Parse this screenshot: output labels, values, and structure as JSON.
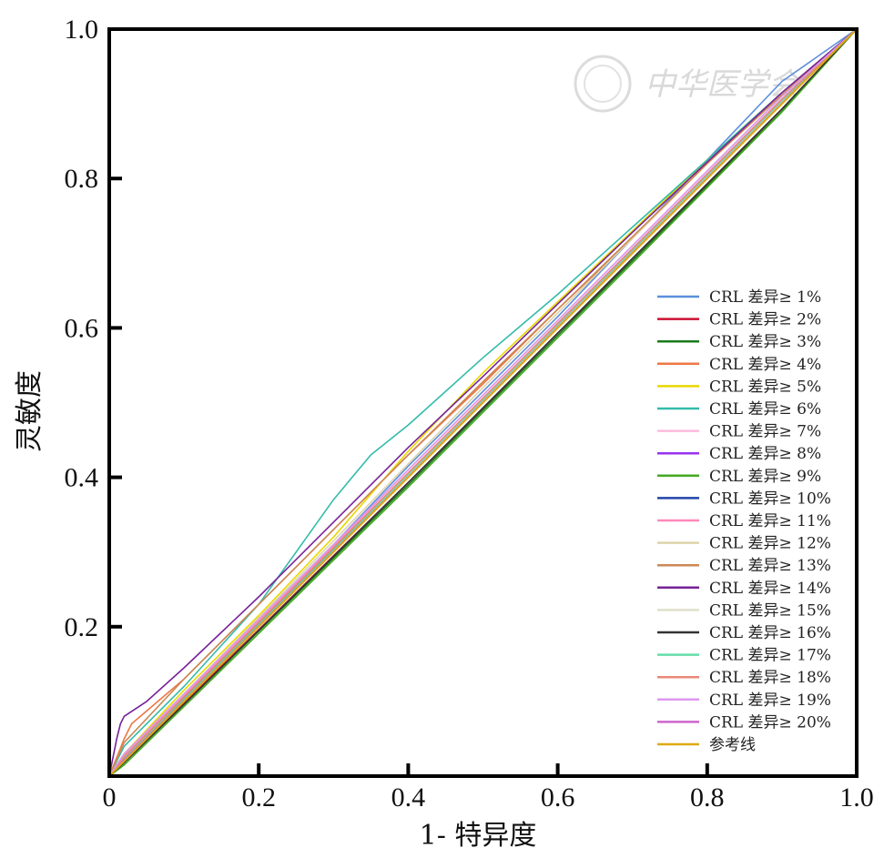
{
  "watermark": {
    "text": "中华医学会"
  },
  "chart_data": {
    "type": "line",
    "title": "",
    "xlabel": "1- 特异度",
    "ylabel": "灵敏度",
    "xlim": [
      0,
      1
    ],
    "ylim": [
      0,
      1
    ],
    "x_ticks": [
      "0",
      "0.2",
      "0.4",
      "0.6",
      "0.8",
      "1.0"
    ],
    "y_ticks": [
      "0.2",
      "0.4",
      "0.6",
      "0.8",
      "1.0"
    ],
    "grid": false,
    "legend_position": "right",
    "series": [
      {
        "name": "CRL 差异≥ 1%",
        "color": "#5b8fdc",
        "x": [
          0,
          0.02,
          0.1,
          0.2,
          0.3,
          0.4,
          0.5,
          0.6,
          0.7,
          0.8,
          0.9,
          1
        ],
        "y": [
          0,
          0.03,
          0.11,
          0.21,
          0.31,
          0.415,
          0.515,
          0.615,
          0.72,
          0.825,
          0.93,
          1
        ]
      },
      {
        "name": "CRL 差异≥ 2%",
        "color": "#cc1133",
        "x": [
          0,
          0.02,
          0.1,
          0.2,
          0.3,
          0.4,
          0.5,
          0.6,
          0.7,
          0.8,
          0.9,
          1
        ],
        "y": [
          0,
          0.02,
          0.098,
          0.196,
          0.295,
          0.393,
          0.492,
          0.593,
          0.69,
          0.792,
          0.893,
          1
        ]
      },
      {
        "name": "CRL 差异≥ 3%",
        "color": "#1a7a1a",
        "x": [
          0,
          0.02,
          0.1,
          0.2,
          0.3,
          0.4,
          0.5,
          0.6,
          0.7,
          0.8,
          0.9,
          1
        ],
        "y": [
          0,
          0.018,
          0.096,
          0.194,
          0.292,
          0.39,
          0.49,
          0.59,
          0.69,
          0.79,
          0.89,
          1
        ]
      },
      {
        "name": "CRL 差异≥ 4%",
        "color": "#ee7744",
        "x": [
          0,
          0.02,
          0.03,
          0.1,
          0.2,
          0.3,
          0.4,
          0.5,
          0.6,
          0.7,
          0.8,
          0.9,
          1
        ],
        "y": [
          0,
          0.05,
          0.07,
          0.13,
          0.23,
          0.33,
          0.43,
          0.525,
          0.625,
          0.72,
          0.82,
          0.915,
          1
        ]
      },
      {
        "name": "CRL 差异≥ 5%",
        "color": "#e8d800",
        "x": [
          0,
          0.02,
          0.1,
          0.2,
          0.3,
          0.4,
          0.5,
          0.6,
          0.7,
          0.8,
          0.9,
          1
        ],
        "y": [
          0,
          0.03,
          0.115,
          0.215,
          0.32,
          0.435,
          0.54,
          0.635,
          0.73,
          0.825,
          0.915,
          1
        ]
      },
      {
        "name": "CRL 差异≥ 6%",
        "color": "#33bbaa",
        "x": [
          0,
          0.02,
          0.1,
          0.2,
          0.25,
          0.3,
          0.35,
          0.4,
          0.5,
          0.6,
          0.7,
          0.8,
          0.9,
          1
        ],
        "y": [
          0,
          0.04,
          0.12,
          0.23,
          0.3,
          0.37,
          0.43,
          0.47,
          0.56,
          0.645,
          0.735,
          0.825,
          0.915,
          1
        ]
      },
      {
        "name": "CRL 差异≥ 7%",
        "color": "#ffbbdd",
        "x": [
          0,
          0.02,
          0.1,
          0.2,
          0.3,
          0.4,
          0.5,
          0.6,
          0.7,
          0.8,
          0.9,
          1
        ],
        "y": [
          0,
          0.025,
          0.105,
          0.205,
          0.305,
          0.405,
          0.505,
          0.605,
          0.705,
          0.805,
          0.905,
          1
        ]
      },
      {
        "name": "CRL 差异≥ 8%",
        "color": "#9933ee",
        "x": [
          0,
          0.02,
          0.1,
          0.2,
          0.3,
          0.4,
          0.5,
          0.6,
          0.7,
          0.8,
          0.9,
          1
        ],
        "y": [
          0,
          0.022,
          0.1,
          0.2,
          0.3,
          0.4,
          0.5,
          0.6,
          0.7,
          0.8,
          0.9,
          1
        ]
      },
      {
        "name": "CRL 差异≥ 9%",
        "color": "#44aa22",
        "x": [
          0,
          0.02,
          0.1,
          0.2,
          0.3,
          0.4,
          0.5,
          0.6,
          0.7,
          0.8,
          0.9,
          1
        ],
        "y": [
          0,
          0.015,
          0.093,
          0.191,
          0.289,
          0.387,
          0.487,
          0.587,
          0.687,
          0.788,
          0.889,
          1
        ]
      },
      {
        "name": "CRL 差异≥ 10%",
        "color": "#2244aa",
        "x": [
          0,
          0.02,
          0.1,
          0.2,
          0.3,
          0.4,
          0.5,
          0.6,
          0.7,
          0.8,
          0.9,
          1
        ],
        "y": [
          0,
          0.025,
          0.104,
          0.205,
          0.305,
          0.405,
          0.505,
          0.606,
          0.706,
          0.806,
          0.906,
          1
        ]
      },
      {
        "name": "CRL 差异≥ 11%",
        "color": "#ff88bb",
        "x": [
          0,
          0.02,
          0.1,
          0.2,
          0.3,
          0.4,
          0.5,
          0.6,
          0.7,
          0.8,
          0.9,
          1
        ],
        "y": [
          0,
          0.028,
          0.108,
          0.208,
          0.308,
          0.41,
          0.51,
          0.61,
          0.71,
          0.81,
          0.91,
          1
        ]
      },
      {
        "name": "CRL 差异≥ 12%",
        "color": "#ddd4aa",
        "x": [
          0,
          0.02,
          0.1,
          0.2,
          0.3,
          0.4,
          0.5,
          0.6,
          0.7,
          0.8,
          0.9,
          1
        ],
        "y": [
          0,
          0.03,
          0.11,
          0.212,
          0.315,
          0.418,
          0.52,
          0.62,
          0.72,
          0.82,
          0.915,
          1
        ]
      },
      {
        "name": "CRL 差异≥ 13%",
        "color": "#cc8855",
        "x": [
          0,
          0.02,
          0.1,
          0.2,
          0.3,
          0.4,
          0.5,
          0.6,
          0.7,
          0.8,
          0.9,
          1
        ],
        "y": [
          0,
          0.045,
          0.13,
          0.23,
          0.33,
          0.43,
          0.528,
          0.625,
          0.722,
          0.82,
          0.912,
          1
        ]
      },
      {
        "name": "CRL 差异≥ 14%",
        "color": "#772299",
        "x": [
          0,
          0.01,
          0.015,
          0.02,
          0.05,
          0.1,
          0.2,
          0.3,
          0.4,
          0.5,
          0.6,
          0.7,
          0.8,
          0.9,
          1
        ],
        "y": [
          0,
          0.05,
          0.07,
          0.08,
          0.1,
          0.145,
          0.24,
          0.34,
          0.44,
          0.535,
          0.632,
          0.728,
          0.822,
          0.915,
          1
        ]
      },
      {
        "name": "CRL 差异≥ 15%",
        "color": "#e0e0cc",
        "x": [
          0,
          0.02,
          0.1,
          0.2,
          0.3,
          0.4,
          0.5,
          0.6,
          0.7,
          0.8,
          0.9,
          1
        ],
        "y": [
          0,
          0.02,
          0.1,
          0.2,
          0.3,
          0.4,
          0.5,
          0.6,
          0.7,
          0.8,
          0.9,
          1
        ]
      },
      {
        "name": "CRL 差异≥ 16%",
        "color": "#333333",
        "x": [
          0,
          0.02,
          0.1,
          0.2,
          0.3,
          0.4,
          0.5,
          0.6,
          0.7,
          0.8,
          0.9,
          1
        ],
        "y": [
          0,
          0.018,
          0.096,
          0.195,
          0.294,
          0.393,
          0.493,
          0.593,
          0.693,
          0.793,
          0.893,
          1
        ]
      },
      {
        "name": "CRL 差异≥ 17%",
        "color": "#66ddaa",
        "x": [
          0,
          0.02,
          0.1,
          0.2,
          0.3,
          0.4,
          0.5,
          0.6,
          0.7,
          0.8,
          0.9,
          1
        ],
        "y": [
          0,
          0.024,
          0.103,
          0.203,
          0.303,
          0.404,
          0.504,
          0.604,
          0.704,
          0.804,
          0.904,
          1
        ]
      },
      {
        "name": "CRL 差异≥ 18%",
        "color": "#e88877",
        "x": [
          0,
          0.02,
          0.1,
          0.2,
          0.3,
          0.4,
          0.5,
          0.6,
          0.7,
          0.8,
          0.9,
          1
        ],
        "y": [
          0,
          0.026,
          0.106,
          0.206,
          0.306,
          0.406,
          0.506,
          0.606,
          0.706,
          0.806,
          0.906,
          1
        ]
      },
      {
        "name": "CRL 差异≥ 19%",
        "color": "#dd99ee",
        "x": [
          0,
          0.02,
          0.1,
          0.2,
          0.3,
          0.4,
          0.5,
          0.6,
          0.7,
          0.8,
          0.9,
          1
        ],
        "y": [
          0,
          0.03,
          0.11,
          0.21,
          0.31,
          0.41,
          0.51,
          0.61,
          0.71,
          0.81,
          0.91,
          1
        ]
      },
      {
        "name": "CRL 差异≥ 20%",
        "color": "#cc66cc",
        "x": [
          0,
          0.02,
          0.1,
          0.2,
          0.3,
          0.4,
          0.5,
          0.6,
          0.7,
          0.8,
          0.9,
          1
        ],
        "y": [
          0,
          0.022,
          0.101,
          0.201,
          0.301,
          0.401,
          0.501,
          0.601,
          0.701,
          0.801,
          0.901,
          1
        ]
      },
      {
        "name": "参考线",
        "color": "#ddaa11",
        "x": [
          0,
          1
        ],
        "y": [
          0,
          1
        ]
      }
    ]
  }
}
